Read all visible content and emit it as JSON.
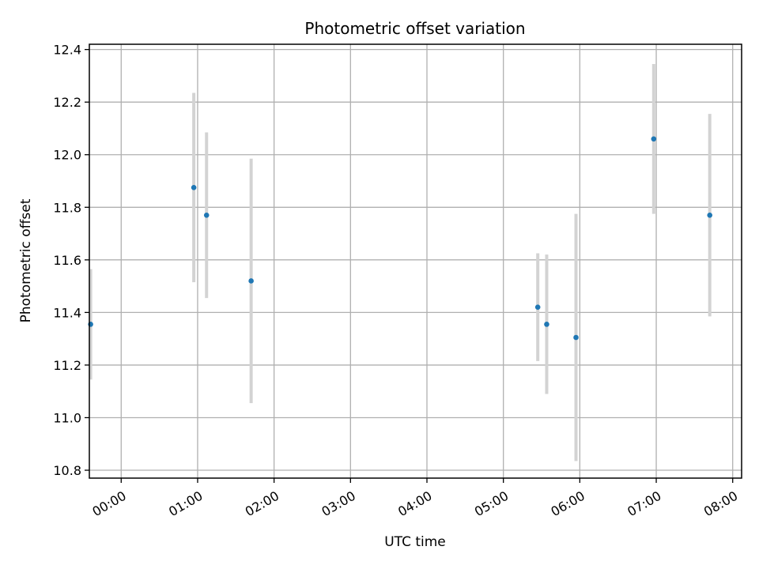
{
  "chart_data": {
    "type": "scatter",
    "title": "Photometric offset variation",
    "xlabel": "UTC time",
    "ylabel": "Photometric offset",
    "x_ticks": [
      "00:00",
      "01:00",
      "02:00",
      "03:00",
      "04:00",
      "05:00",
      "06:00",
      "07:00",
      "08:00"
    ],
    "y_ticks": [
      "10.8",
      "11.0",
      "11.2",
      "11.4",
      "11.6",
      "11.8",
      "12.0",
      "12.2",
      "12.4"
    ],
    "xlim": [
      "23:35",
      "08:07"
    ],
    "ylim": [
      10.77,
      12.42
    ],
    "grid": true,
    "points": [
      {
        "x": "23:36",
        "y": 11.355,
        "yerr": 0.21
      },
      {
        "x": "00:57",
        "y": 11.875,
        "yerr": 0.36
      },
      {
        "x": "01:07",
        "y": 11.77,
        "yerr": 0.315
      },
      {
        "x": "01:42",
        "y": 11.52,
        "yerr": 0.465
      },
      {
        "x": "05:27",
        "y": 11.42,
        "yerr": 0.205
      },
      {
        "x": "05:34",
        "y": 11.355,
        "yerr": 0.265
      },
      {
        "x": "05:57",
        "y": 11.305,
        "yerr": 0.47
      },
      {
        "x": "06:58",
        "y": 12.06,
        "yerr": 0.285
      },
      {
        "x": "07:42",
        "y": 11.77,
        "yerr": 0.385
      }
    ],
    "point_color": "#1f77b4",
    "errorbar_color": "#d3d3d3",
    "grid_color": "#b0b0b0"
  }
}
